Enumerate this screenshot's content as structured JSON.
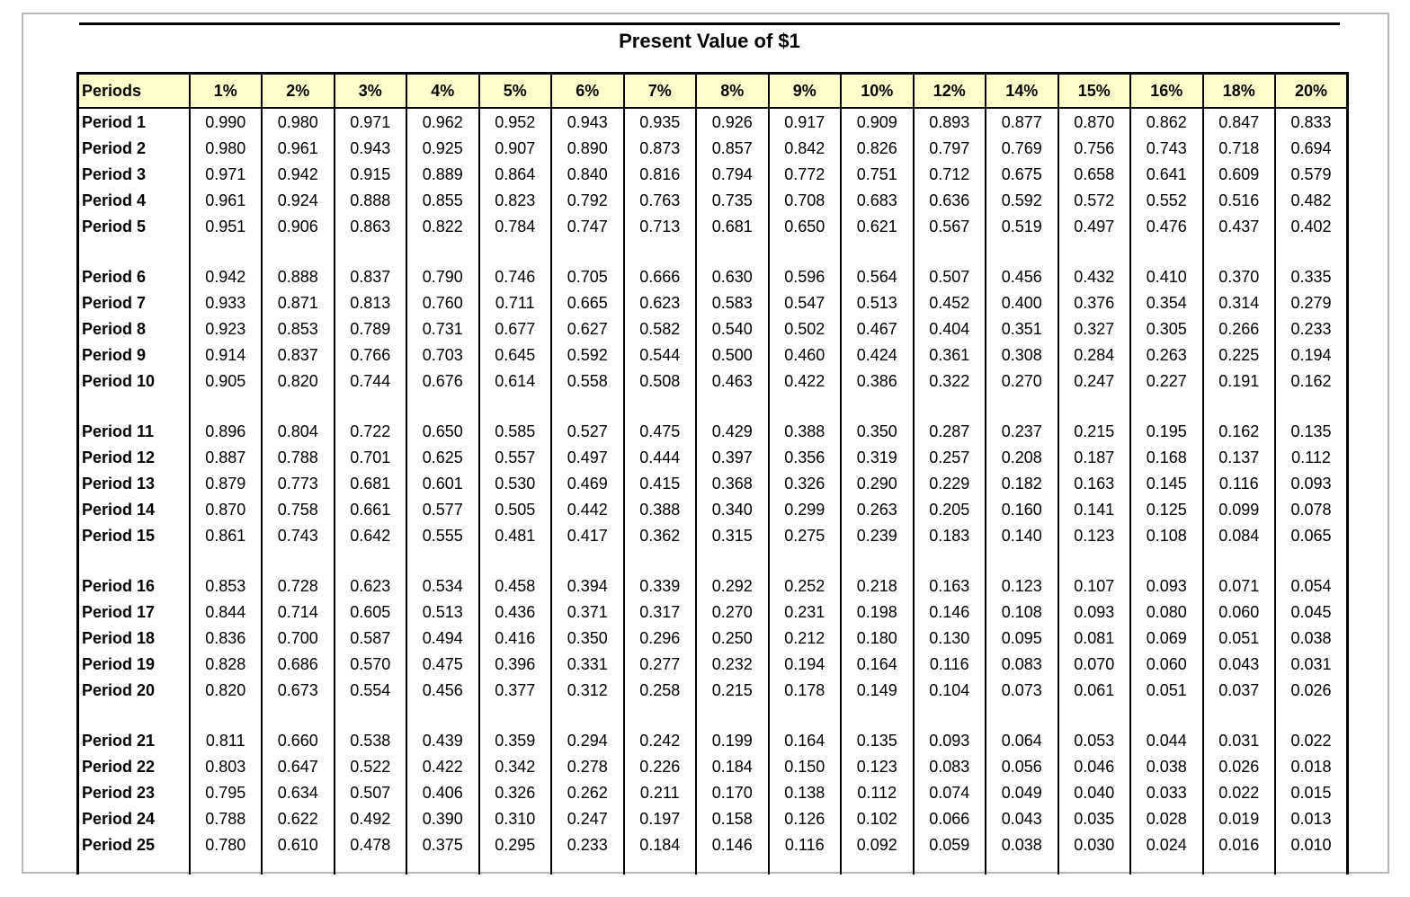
{
  "title": "Present Value of $1",
  "colors": {
    "header_bg": "#ffffcc",
    "table_border": "#000000",
    "page_border": "#b8b8b8",
    "text": "#000000"
  },
  "table": {
    "columns": [
      "Periods",
      "1%",
      "2%",
      "3%",
      "4%",
      "5%",
      "6%",
      "7%",
      "8%",
      "9%",
      "10%",
      "12%",
      "14%",
      "15%",
      "16%",
      "18%",
      "20%"
    ],
    "groups": [
      [
        {
          "label": "Period 1",
          "values": [
            "0.990",
            "0.980",
            "0.971",
            "0.962",
            "0.952",
            "0.943",
            "0.935",
            "0.926",
            "0.917",
            "0.909",
            "0.893",
            "0.877",
            "0.870",
            "0.862",
            "0.847",
            "0.833"
          ]
        },
        {
          "label": "Period 2",
          "values": [
            "0.980",
            "0.961",
            "0.943",
            "0.925",
            "0.907",
            "0.890",
            "0.873",
            "0.857",
            "0.842",
            "0.826",
            "0.797",
            "0.769",
            "0.756",
            "0.743",
            "0.718",
            "0.694"
          ]
        },
        {
          "label": "Period 3",
          "values": [
            "0.971",
            "0.942",
            "0.915",
            "0.889",
            "0.864",
            "0.840",
            "0.816",
            "0.794",
            "0.772",
            "0.751",
            "0.712",
            "0.675",
            "0.658",
            "0.641",
            "0.609",
            "0.579"
          ]
        },
        {
          "label": "Period 4",
          "values": [
            "0.961",
            "0.924",
            "0.888",
            "0.855",
            "0.823",
            "0.792",
            "0.763",
            "0.735",
            "0.708",
            "0.683",
            "0.636",
            "0.592",
            "0.572",
            "0.552",
            "0.516",
            "0.482"
          ]
        },
        {
          "label": "Period 5",
          "values": [
            "0.951",
            "0.906",
            "0.863",
            "0.822",
            "0.784",
            "0.747",
            "0.713",
            "0.681",
            "0.650",
            "0.621",
            "0.567",
            "0.519",
            "0.497",
            "0.476",
            "0.437",
            "0.402"
          ]
        }
      ],
      [
        {
          "label": "Period 6",
          "values": [
            "0.942",
            "0.888",
            "0.837",
            "0.790",
            "0.746",
            "0.705",
            "0.666",
            "0.630",
            "0.596",
            "0.564",
            "0.507",
            "0.456",
            "0.432",
            "0.410",
            "0.370",
            "0.335"
          ]
        },
        {
          "label": "Period 7",
          "values": [
            "0.933",
            "0.871",
            "0.813",
            "0.760",
            "0.711",
            "0.665",
            "0.623",
            "0.583",
            "0.547",
            "0.513",
            "0.452",
            "0.400",
            "0.376",
            "0.354",
            "0.314",
            "0.279"
          ]
        },
        {
          "label": "Period 8",
          "values": [
            "0.923",
            "0.853",
            "0.789",
            "0.731",
            "0.677",
            "0.627",
            "0.582",
            "0.540",
            "0.502",
            "0.467",
            "0.404",
            "0.351",
            "0.327",
            "0.305",
            "0.266",
            "0.233"
          ]
        },
        {
          "label": "Period 9",
          "values": [
            "0.914",
            "0.837",
            "0.766",
            "0.703",
            "0.645",
            "0.592",
            "0.544",
            "0.500",
            "0.460",
            "0.424",
            "0.361",
            "0.308",
            "0.284",
            "0.263",
            "0.225",
            "0.194"
          ]
        },
        {
          "label": "Period 10",
          "values": [
            "0.905",
            "0.820",
            "0.744",
            "0.676",
            "0.614",
            "0.558",
            "0.508",
            "0.463",
            "0.422",
            "0.386",
            "0.322",
            "0.270",
            "0.247",
            "0.227",
            "0.191",
            "0.162"
          ]
        }
      ],
      [
        {
          "label": "Period 11",
          "values": [
            "0.896",
            "0.804",
            "0.722",
            "0.650",
            "0.585",
            "0.527",
            "0.475",
            "0.429",
            "0.388",
            "0.350",
            "0.287",
            "0.237",
            "0.215",
            "0.195",
            "0.162",
            "0.135"
          ]
        },
        {
          "label": "Period 12",
          "values": [
            "0.887",
            "0.788",
            "0.701",
            "0.625",
            "0.557",
            "0.497",
            "0.444",
            "0.397",
            "0.356",
            "0.319",
            "0.257",
            "0.208",
            "0.187",
            "0.168",
            "0.137",
            "0.112"
          ]
        },
        {
          "label": "Period 13",
          "values": [
            "0.879",
            "0.773",
            "0.681",
            "0.601",
            "0.530",
            "0.469",
            "0.415",
            "0.368",
            "0.326",
            "0.290",
            "0.229",
            "0.182",
            "0.163",
            "0.145",
            "0.116",
            "0.093"
          ]
        },
        {
          "label": "Period 14",
          "values": [
            "0.870",
            "0.758",
            "0.661",
            "0.577",
            "0.505",
            "0.442",
            "0.388",
            "0.340",
            "0.299",
            "0.263",
            "0.205",
            "0.160",
            "0.141",
            "0.125",
            "0.099",
            "0.078"
          ]
        },
        {
          "label": "Period 15",
          "values": [
            "0.861",
            "0.743",
            "0.642",
            "0.555",
            "0.481",
            "0.417",
            "0.362",
            "0.315",
            "0.275",
            "0.239",
            "0.183",
            "0.140",
            "0.123",
            "0.108",
            "0.084",
            "0.065"
          ]
        }
      ],
      [
        {
          "label": "Period 16",
          "values": [
            "0.853",
            "0.728",
            "0.623",
            "0.534",
            "0.458",
            "0.394",
            "0.339",
            "0.292",
            "0.252",
            "0.218",
            "0.163",
            "0.123",
            "0.107",
            "0.093",
            "0.071",
            "0.054"
          ]
        },
        {
          "label": "Period 17",
          "values": [
            "0.844",
            "0.714",
            "0.605",
            "0.513",
            "0.436",
            "0.371",
            "0.317",
            "0.270",
            "0.231",
            "0.198",
            "0.146",
            "0.108",
            "0.093",
            "0.080",
            "0.060",
            "0.045"
          ]
        },
        {
          "label": "Period 18",
          "values": [
            "0.836",
            "0.700",
            "0.587",
            "0.494",
            "0.416",
            "0.350",
            "0.296",
            "0.250",
            "0.212",
            "0.180",
            "0.130",
            "0.095",
            "0.081",
            "0.069",
            "0.051",
            "0.038"
          ]
        },
        {
          "label": "Period 19",
          "values": [
            "0.828",
            "0.686",
            "0.570",
            "0.475",
            "0.396",
            "0.331",
            "0.277",
            "0.232",
            "0.194",
            "0.164",
            "0.116",
            "0.083",
            "0.070",
            "0.060",
            "0.043",
            "0.031"
          ]
        },
        {
          "label": "Period 20",
          "values": [
            "0.820",
            "0.673",
            "0.554",
            "0.456",
            "0.377",
            "0.312",
            "0.258",
            "0.215",
            "0.178",
            "0.149",
            "0.104",
            "0.073",
            "0.061",
            "0.051",
            "0.037",
            "0.026"
          ]
        }
      ],
      [
        {
          "label": "Period 21",
          "values": [
            "0.811",
            "0.660",
            "0.538",
            "0.439",
            "0.359",
            "0.294",
            "0.242",
            "0.199",
            "0.164",
            "0.135",
            "0.093",
            "0.064",
            "0.053",
            "0.044",
            "0.031",
            "0.022"
          ]
        },
        {
          "label": "Period 22",
          "values": [
            "0.803",
            "0.647",
            "0.522",
            "0.422",
            "0.342",
            "0.278",
            "0.226",
            "0.184",
            "0.150",
            "0.123",
            "0.083",
            "0.056",
            "0.046",
            "0.038",
            "0.026",
            "0.018"
          ]
        },
        {
          "label": "Period 23",
          "values": [
            "0.795",
            "0.634",
            "0.507",
            "0.406",
            "0.326",
            "0.262",
            "0.211",
            "0.170",
            "0.138",
            "0.112",
            "0.074",
            "0.049",
            "0.040",
            "0.033",
            "0.022",
            "0.015"
          ]
        },
        {
          "label": "Period 24",
          "values": [
            "0.788",
            "0.622",
            "0.492",
            "0.390",
            "0.310",
            "0.247",
            "0.197",
            "0.158",
            "0.126",
            "0.102",
            "0.066",
            "0.043",
            "0.035",
            "0.028",
            "0.019",
            "0.013"
          ]
        },
        {
          "label": "Period 25",
          "values": [
            "0.780",
            "0.610",
            "0.478",
            "0.375",
            "0.295",
            "0.233",
            "0.184",
            "0.146",
            "0.116",
            "0.092",
            "0.059",
            "0.038",
            "0.030",
            "0.024",
            "0.016",
            "0.010"
          ]
        }
      ]
    ]
  }
}
